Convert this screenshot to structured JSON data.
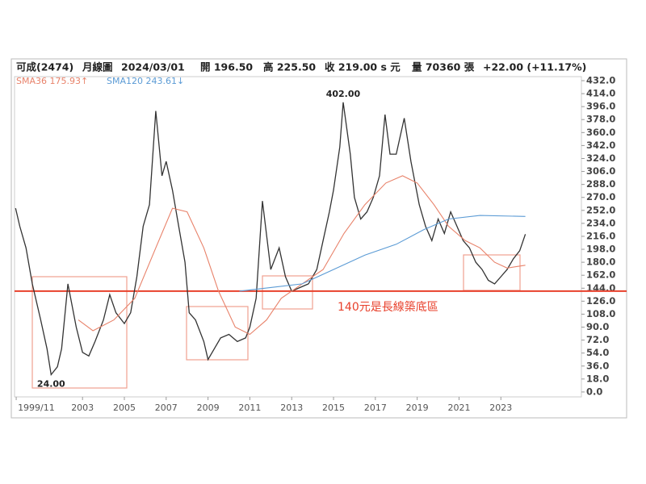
{
  "chart_data": {
    "type": "line",
    "header": [
      "可成(2474)",
      "月線圖",
      "2024/03/01",
      "開 196.50",
      "高 225.50",
      "收 219.00 s 元",
      "量 70360 張",
      "+22.00 (+11.17%)"
    ],
    "xlim": [
      1999.75,
      2026.85
    ],
    "xticks": [
      {
        "value": 1999.83,
        "label": "1999/11"
      },
      2003,
      2005,
      2007,
      2009,
      2011,
      2013,
      2015,
      2017,
      2019,
      2021,
      2023
    ],
    "ylim": [
      -6.8,
      437.6
    ],
    "yticks": [
      {
        "value": 0,
        "label": "0.0"
      },
      {
        "value": 18,
        "label": "18.0"
      },
      {
        "value": 36,
        "label": "36.0"
      },
      {
        "value": 54,
        "label": "54.0"
      },
      {
        "value": 72,
        "label": "72.0"
      },
      {
        "value": 90,
        "label": "90.0"
      },
      {
        "value": 108,
        "label": "108.0"
      },
      {
        "value": 126,
        "label": "126.0"
      },
      {
        "value": 144,
        "label": "144.0"
      },
      {
        "value": 162,
        "label": "162.0"
      },
      {
        "value": 180,
        "label": "180.0"
      },
      {
        "value": 198,
        "label": "198.0"
      },
      {
        "value": 216,
        "label": "216.0"
      },
      {
        "value": 234,
        "label": "234.0"
      },
      {
        "value": 252,
        "label": "252.0"
      },
      {
        "value": 270,
        "label": "270.0"
      },
      {
        "value": 288,
        "label": "288.0"
      },
      {
        "value": 306,
        "label": "306.0"
      },
      {
        "value": 324,
        "label": "324.0"
      },
      {
        "value": 342,
        "label": "342.0"
      },
      {
        "value": 360,
        "label": "360.0"
      },
      {
        "value": 378,
        "label": "378.0"
      },
      {
        "value": 396,
        "label": "396.0"
      },
      {
        "value": 414,
        "label": "414.0"
      },
      {
        "value": 432,
        "label": "432.0"
      }
    ],
    "grid": false,
    "series": [
      {
        "color": "#333333",
        "x": [
          1999.8,
          2000.0,
          2000.3,
          2000.6,
          2001.0,
          2001.3,
          2001.5,
          2001.8,
          2002.0,
          2002.3,
          2002.7,
          2003.0,
          2003.3,
          2003.6,
          2004.0,
          2004.3,
          2004.6,
          2005.0,
          2005.3,
          2005.6,
          2005.9,
          2006.2,
          2006.5,
          2006.8,
          2007.0,
          2007.3,
          2007.6,
          2007.9,
          2008.1,
          2008.4,
          2008.8,
          2009.0,
          2009.3,
          2009.6,
          2010.0,
          2010.4,
          2010.8,
          2011.0,
          2011.3,
          2011.6,
          2012.0,
          2012.4,
          2012.7,
          2013.0,
          2013.4,
          2013.8,
          2014.2,
          2014.5,
          2014.8,
          2015.0,
          2015.3,
          2015.46,
          2015.8,
          2016.0,
          2016.3,
          2016.6,
          2016.9,
          2017.2,
          2017.46,
          2017.7,
          2018.0,
          2018.38,
          2018.7,
          2019.1,
          2019.4,
          2019.7,
          2020.0,
          2020.3,
          2020.6,
          2020.9,
          2021.2,
          2021.5,
          2021.8,
          2022.1,
          2022.4,
          2022.7,
          2023.0,
          2023.3,
          2023.6,
          2023.9,
          2024.17
        ],
        "values": [
          255,
          230,
          200,
          150,
          100,
          60,
          24,
          35,
          60,
          150,
          90,
          55,
          50,
          70,
          100,
          135,
          110,
          95,
          110,
          160,
          230,
          260,
          390,
          300,
          320,
          280,
          230,
          180,
          110,
          100,
          70,
          45,
          60,
          75,
          80,
          70,
          75,
          90,
          130,
          265,
          170,
          200,
          160,
          140,
          145,
          150,
          170,
          210,
          250,
          280,
          340,
          402,
          330,
          270,
          240,
          250,
          270,
          300,
          385,
          330,
          330,
          380,
          320,
          260,
          230,
          210,
          240,
          220,
          250,
          230,
          210,
          200,
          180,
          170,
          155,
          150,
          160,
          170,
          185,
          196,
          219
        ]
      },
      {
        "name": "SMA36 175.93↑",
        "color": "#e8826a",
        "x": [
          2002.8,
          2003.5,
          2004.5,
          2005.5,
          2006.5,
          2007.3,
          2008.0,
          2008.8,
          2009.5,
          2010.3,
          2011.0,
          2011.8,
          2012.5,
          2013.5,
          2014.5,
          2015.5,
          2016.5,
          2017.5,
          2018.3,
          2019.0,
          2019.8,
          2020.5,
          2021.3,
          2022.0,
          2022.7,
          2023.3,
          2024.17
        ],
        "values": [
          100,
          85,
          100,
          130,
          200,
          255,
          250,
          200,
          140,
          90,
          80,
          100,
          130,
          150,
          170,
          220,
          260,
          290,
          300,
          290,
          260,
          230,
          210,
          200,
          180,
          172,
          175.93
        ]
      },
      {
        "name": "SMA120 243.61↓",
        "color": "#5b9bd5",
        "x": [
          2010.5,
          2012.0,
          2013.5,
          2015.0,
          2016.5,
          2018.0,
          2019.3,
          2020.5,
          2022.0,
          2024.17
        ],
        "values": [
          140,
          145,
          150,
          170,
          190,
          205,
          225,
          240,
          245,
          243.61
        ]
      }
    ],
    "annotations": [
      {
        "x": 2015.46,
        "y": 402,
        "label": "402.00"
      },
      {
        "x": 2001.5,
        "y": 24,
        "label": "24.00"
      }
    ],
    "support": {
      "value": 140,
      "label": "140元是長線築底區",
      "color": "#e8412c"
    }
  }
}
